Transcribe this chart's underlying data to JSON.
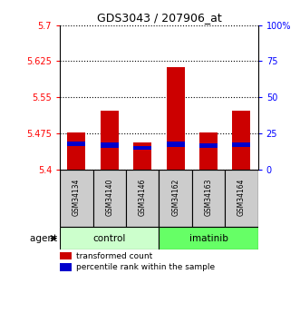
{
  "title": "GDS3043 / 207906_at",
  "samples": [
    "GSM34134",
    "GSM34140",
    "GSM34146",
    "GSM34162",
    "GSM34163",
    "GSM34164"
  ],
  "ymin": 5.4,
  "ymax": 5.7,
  "yticks": [
    5.4,
    5.475,
    5.55,
    5.625,
    5.7
  ],
  "ytick_labels": [
    "5.4",
    "5.475",
    "5.55",
    "5.625",
    "5.7"
  ],
  "y2ticks": [
    0,
    25,
    50,
    75,
    100
  ],
  "y2tick_labels": [
    "0",
    "25",
    "50",
    "75",
    "100%"
  ],
  "red_tops": [
    5.477,
    5.522,
    5.455,
    5.612,
    5.476,
    5.522
  ],
  "blue_bottoms": [
    5.449,
    5.445,
    5.44,
    5.447,
    5.444,
    5.446
  ],
  "blue_tops": [
    5.458,
    5.456,
    5.449,
    5.457,
    5.454,
    5.455
  ],
  "bar_base": 5.4,
  "bar_width": 0.55,
  "red_color": "#cc0000",
  "blue_color": "#0000cc",
  "legend_red_label": "transformed count",
  "legend_blue_label": "percentile rank within the sample",
  "control_color": "#ccffcc",
  "imatinib_color": "#66ff66",
  "sample_box_color": "#cccccc"
}
